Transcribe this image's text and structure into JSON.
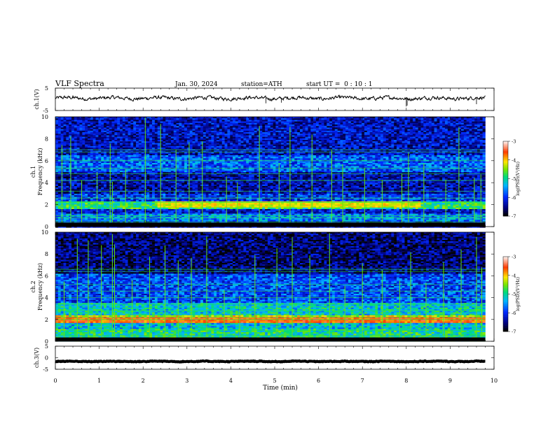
{
  "header": {
    "title": "VLF Spectra",
    "date": "Jan. 30, 2024",
    "station": "station=ATH",
    "start_ut": "start UT =  0 : 10 : 1"
  },
  "chart_data": [
    {
      "name": "ch1-waveform",
      "type": "line",
      "ylabel": "ch.1(V)",
      "ylim": [
        -5,
        5
      ],
      "yticks": [
        "5",
        "-5"
      ],
      "xlim": [
        0,
        10
      ],
      "data_end_min": 9.8,
      "baseline": 0.5,
      "noise_amplitude": 1.2,
      "spikes": [
        {
          "x": 8.0,
          "y": -3.2
        },
        {
          "x": 8.02,
          "y": -2.8
        },
        {
          "x": 9.6,
          "y": -2.2
        },
        {
          "x": 4.8,
          "y": -1.8
        },
        {
          "x": 0.4,
          "y": 1.8
        },
        {
          "x": 5.15,
          "y": -1.5
        }
      ],
      "color": "#000000"
    },
    {
      "name": "ch1-spectrogram",
      "type": "heatmap",
      "ylabel": "ch.1\nFrequency (kHz)",
      "ylim": [
        0,
        10
      ],
      "yticks": [
        "0",
        "2",
        "4",
        "6",
        "8",
        "10"
      ],
      "xlim": [
        0,
        10
      ],
      "data_end_min": 9.8,
      "colorbar": {
        "label": "log(PSD) (V²/Hz)",
        "range": [
          -7,
          -3
        ],
        "ticks": [
          "-3",
          "-4",
          "-5",
          "-6",
          "-7"
        ]
      },
      "bands": [
        {
          "f_low": 0.0,
          "f_high": 0.6,
          "level": -6.4
        },
        {
          "f_low": 0.6,
          "f_high": 1.2,
          "level": -5.6
        },
        {
          "f_low": 1.2,
          "f_high": 1.6,
          "level": -6.2
        },
        {
          "f_low": 1.6,
          "f_high": 2.4,
          "level": -4.9
        },
        {
          "f_low": 2.4,
          "f_high": 3.0,
          "level": -6.0
        },
        {
          "f_low": 3.0,
          "f_high": 5.0,
          "level": -6.4
        },
        {
          "f_low": 5.0,
          "f_high": 6.5,
          "level": -5.8
        },
        {
          "f_low": 6.5,
          "f_high": 10.0,
          "level": -6.3
        }
      ],
      "lines_khz": [
        0.2,
        0.4,
        0.8,
        1.0,
        2.2,
        2.6,
        3.2,
        4.2,
        4.8,
        5.3,
        6.0,
        6.8,
        7.0
      ],
      "sferics_min": [
        0.15,
        0.35,
        0.6,
        0.95,
        1.25,
        1.3,
        1.6,
        2.05,
        2.4,
        2.75,
        3.05,
        3.35,
        3.9,
        4.15,
        4.65,
        5.1,
        5.35,
        5.85,
        6.3,
        6.55,
        7.05,
        7.45,
        7.9,
        8.05,
        8.4,
        8.9,
        9.2,
        9.55,
        9.7
      ],
      "enhanced_band": {
        "x_start": 2.3,
        "x_end": 8.3,
        "f_low": 1.8,
        "f_high": 2.4,
        "level": -4.2
      }
    },
    {
      "name": "ch2-spectrogram",
      "type": "heatmap",
      "ylabel": "ch.2\nFrequency (kHz)",
      "ylim": [
        0,
        10
      ],
      "yticks": [
        "0",
        "2",
        "4",
        "6",
        "8",
        "10"
      ],
      "xlim": [
        0,
        10
      ],
      "data_end_min": 9.8,
      "colorbar": {
        "label": "log(PSD) (V²/Hz)",
        "range": [
          -7,
          -3
        ],
        "ticks": [
          "-3",
          "-4",
          "-5",
          "-6",
          "-7"
        ]
      },
      "bands": [
        {
          "f_low": 0.0,
          "f_high": 1.2,
          "level": -5.0
        },
        {
          "f_low": 1.2,
          "f_high": 1.8,
          "level": -5.3
        },
        {
          "f_low": 1.8,
          "f_high": 2.4,
          "level": -4.3
        },
        {
          "f_low": 2.4,
          "f_high": 3.6,
          "level": -5.2
        },
        {
          "f_low": 3.6,
          "f_high": 6.2,
          "level": -5.9
        },
        {
          "f_low": 6.2,
          "f_high": 10.0,
          "level": -6.6
        }
      ],
      "lines_khz": [
        0.5,
        1.0,
        2.0,
        2.2,
        2.8,
        3.4,
        4.0,
        4.6,
        5.2,
        6.4,
        6.6
      ],
      "sferics_min": [
        0.2,
        0.5,
        0.75,
        1.05,
        1.3,
        1.35,
        1.75,
        2.15,
        2.5,
        2.8,
        3.1,
        3.45,
        3.85,
        4.2,
        4.55,
        5.05,
        5.4,
        5.8,
        6.25,
        6.6,
        7.0,
        7.45,
        7.85,
        8.1,
        8.45,
        8.85,
        9.25,
        9.6,
        9.72
      ],
      "enhanced_band": {
        "x_start": 0.0,
        "x_end": 9.8,
        "f_low": 1.8,
        "f_high": 2.3,
        "level": -3.7
      }
    },
    {
      "name": "ch3-waveform",
      "type": "line",
      "ylabel": "ch.3(V)",
      "ylim": [
        -5,
        5
      ],
      "yticks": [
        "5",
        "0",
        "-5"
      ],
      "xlim": [
        0,
        10
      ],
      "data_end_min": 9.8,
      "baseline": -1.6,
      "noise_amplitude": 0.25,
      "spikes": [],
      "color": "#000000"
    }
  ],
  "xaxis": {
    "label": "Time (min)",
    "ticks": [
      "0",
      "1",
      "2",
      "3",
      "4",
      "5",
      "6",
      "7",
      "8",
      "9",
      "10"
    ]
  },
  "colorbar_label": "log(PSD)(V²/Hz)"
}
